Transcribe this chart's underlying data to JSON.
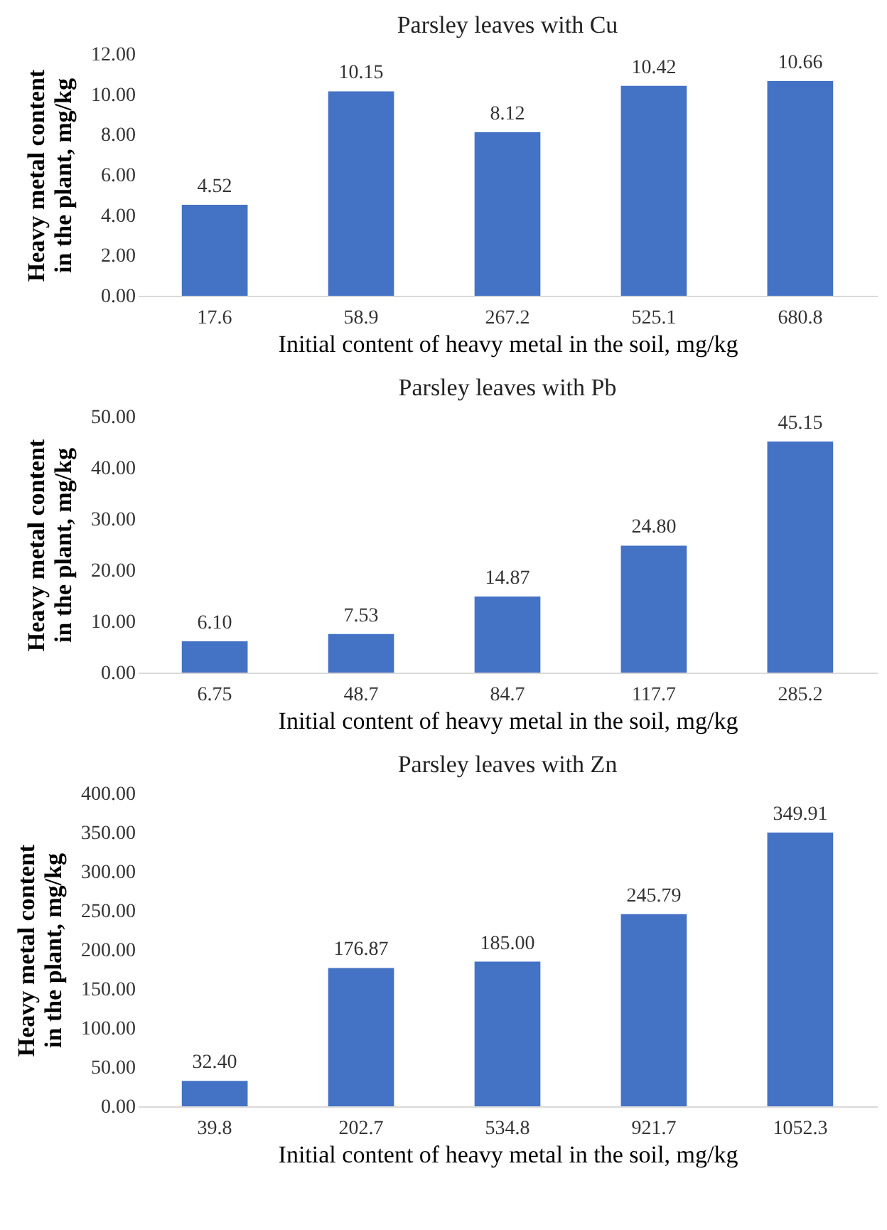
{
  "chart_data": [
    {
      "type": "bar",
      "title": "Parsley leaves with Cu",
      "xlabel": "Initial content of heavy metal in the soil, mg/kg",
      "ylabel": "Heavy metal content in the plant, mg/kg",
      "categories": [
        "17.6",
        "58.9",
        "267.2",
        "525.1",
        "680.8"
      ],
      "values": [
        4.52,
        10.15,
        8.12,
        10.42,
        10.66
      ],
      "value_labels": [
        "4.52",
        "10.15",
        "8.12",
        "10.42",
        "10.66"
      ],
      "color": "#4472c4",
      "ylim": [
        0,
        12
      ],
      "yticks": [
        {
          "value": 0,
          "label": "0.00"
        },
        {
          "value": 2,
          "label": "2.00"
        },
        {
          "value": 4,
          "label": "4.00"
        },
        {
          "value": 6,
          "label": "6.00"
        },
        {
          "value": 8,
          "label": "8.00"
        },
        {
          "value": 10,
          "label": "10.00"
        },
        {
          "value": 12,
          "label": "12.00"
        }
      ]
    },
    {
      "type": "bar",
      "title": "Parsley leaves with Pb",
      "xlabel": "Initial content of heavy metal in the soil, mg/kg",
      "ylabel": "Heavy metal content in the plant, mg/kg",
      "categories": [
        "6.75",
        "48.7",
        "84.7",
        "117.7",
        "285.2"
      ],
      "values": [
        6.1,
        7.53,
        14.87,
        24.8,
        45.15
      ],
      "value_labels": [
        "6.10",
        "7.53",
        "14.87",
        "24.80",
        "45.15"
      ],
      "color": "#4472c4",
      "ylim": [
        0,
        50
      ],
      "yticks": [
        {
          "value": 0,
          "label": "0.00"
        },
        {
          "value": 10,
          "label": "10.00"
        },
        {
          "value": 20,
          "label": "20.00"
        },
        {
          "value": 30,
          "label": "30.00"
        },
        {
          "value": 40,
          "label": "40.00"
        },
        {
          "value": 50,
          "label": "50.00"
        }
      ]
    },
    {
      "type": "bar",
      "title": "Parsley leaves with Zn",
      "xlabel": "Initial content of heavy metal in the soil, mg/kg",
      "ylabel": "Heavy metal content in the plant, mg/kg",
      "categories": [
        "39.8",
        "202.7",
        "534.8",
        "921.7",
        "1052.3"
      ],
      "values": [
        32.4,
        176.87,
        185,
        245.79,
        349.91
      ],
      "value_labels": [
        "32.40",
        "176.87",
        "185.00",
        "245.79",
        "349.91"
      ],
      "color": "#4472c4",
      "ylim": [
        0,
        400
      ],
      "yticks": [
        {
          "value": 0,
          "label": "0.00"
        },
        {
          "value": 50,
          "label": "50.00"
        },
        {
          "value": 100,
          "label": "100.00"
        },
        {
          "value": 150,
          "label": "150.00"
        },
        {
          "value": 200,
          "label": "200.00"
        },
        {
          "value": 250,
          "label": "250.00"
        },
        {
          "value": 300,
          "label": "300.00"
        },
        {
          "value": 350,
          "label": "350.00"
        },
        {
          "value": 400,
          "label": "400.00"
        }
      ]
    }
  ]
}
